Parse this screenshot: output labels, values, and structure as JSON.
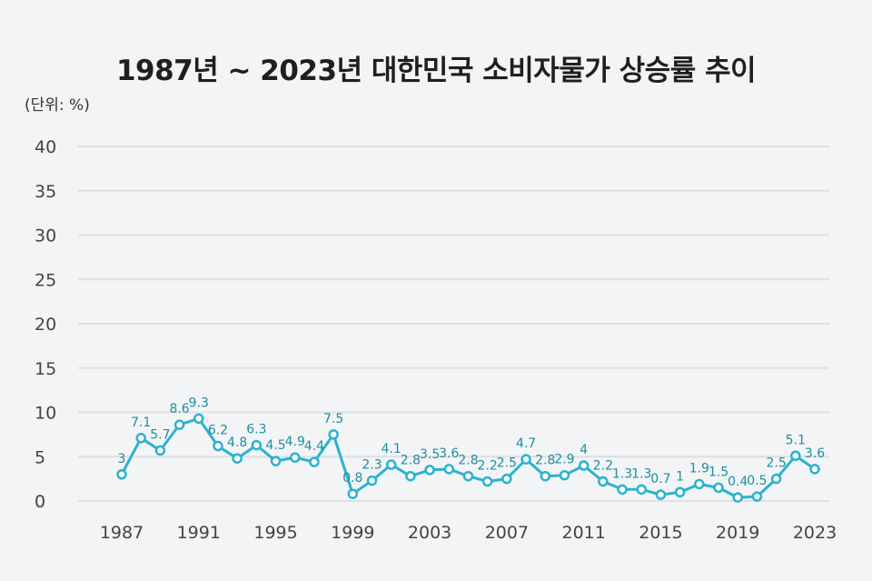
{
  "title": "1987년 ~ 2023년 대한민국 소비자물가 상승률 추이",
  "unit_label": "(단위: %)",
  "colors": {
    "line": "#2ab3cf",
    "label": "#1c8ea0",
    "grid": "#dedfe2",
    "background": "#f3f4f6"
  },
  "chart_data": {
    "type": "line",
    "title": "1987년 ~ 2023년 대한민국 소비자물가 상승률 추이",
    "ylabel": "(단위: %)",
    "xlabel": "",
    "ylim": [
      0,
      40
    ],
    "yticks": [
      0,
      5,
      10,
      15,
      20,
      25,
      30,
      35,
      40
    ],
    "xtick_labels": [
      "1987",
      "1991",
      "1995",
      "1999",
      "2003",
      "2007",
      "2011",
      "2015",
      "2019",
      "2023"
    ],
    "grid": true,
    "x": [
      1987,
      1988,
      1989,
      1990,
      1991,
      1992,
      1993,
      1994,
      1995,
      1996,
      1997,
      1998,
      1999,
      2000,
      2001,
      2002,
      2003,
      2004,
      2005,
      2006,
      2007,
      2008,
      2009,
      2010,
      2011,
      2012,
      2013,
      2014,
      2015,
      2016,
      2017,
      2018,
      2019,
      2020,
      2021,
      2022,
      2023
    ],
    "values": [
      3,
      7.1,
      5.7,
      8.6,
      9.3,
      6.2,
      4.8,
      6.3,
      4.5,
      4.9,
      4.4,
      7.5,
      0.8,
      2.3,
      4.1,
      2.8,
      3.5,
      3.6,
      2.8,
      2.2,
      2.5,
      4.7,
      2.8,
      2.9,
      4,
      2.2,
      1.3,
      1.3,
      0.7,
      1,
      1.9,
      1.5,
      0.4,
      0.5,
      2.5,
      5.1,
      3.6
    ],
    "data_labels": [
      "3",
      "7.1",
      "5.7",
      "8.6",
      "9.3",
      "6.2",
      "4.8",
      "6.3",
      "4.5",
      "4.9",
      "4.4",
      "7.5",
      "0.8",
      "2.3",
      "4.1",
      "2.8",
      "3.5",
      "3.6",
      "2.8",
      "2.2",
      "2.5",
      "4.7",
      "2.8",
      "2.9",
      "4",
      "2.2",
      "1.3",
      "1.3",
      "0.7",
      "1",
      "1.9",
      "1.5",
      "0.4",
      "0.5",
      "2.5",
      "5.1",
      "3.6"
    ]
  }
}
